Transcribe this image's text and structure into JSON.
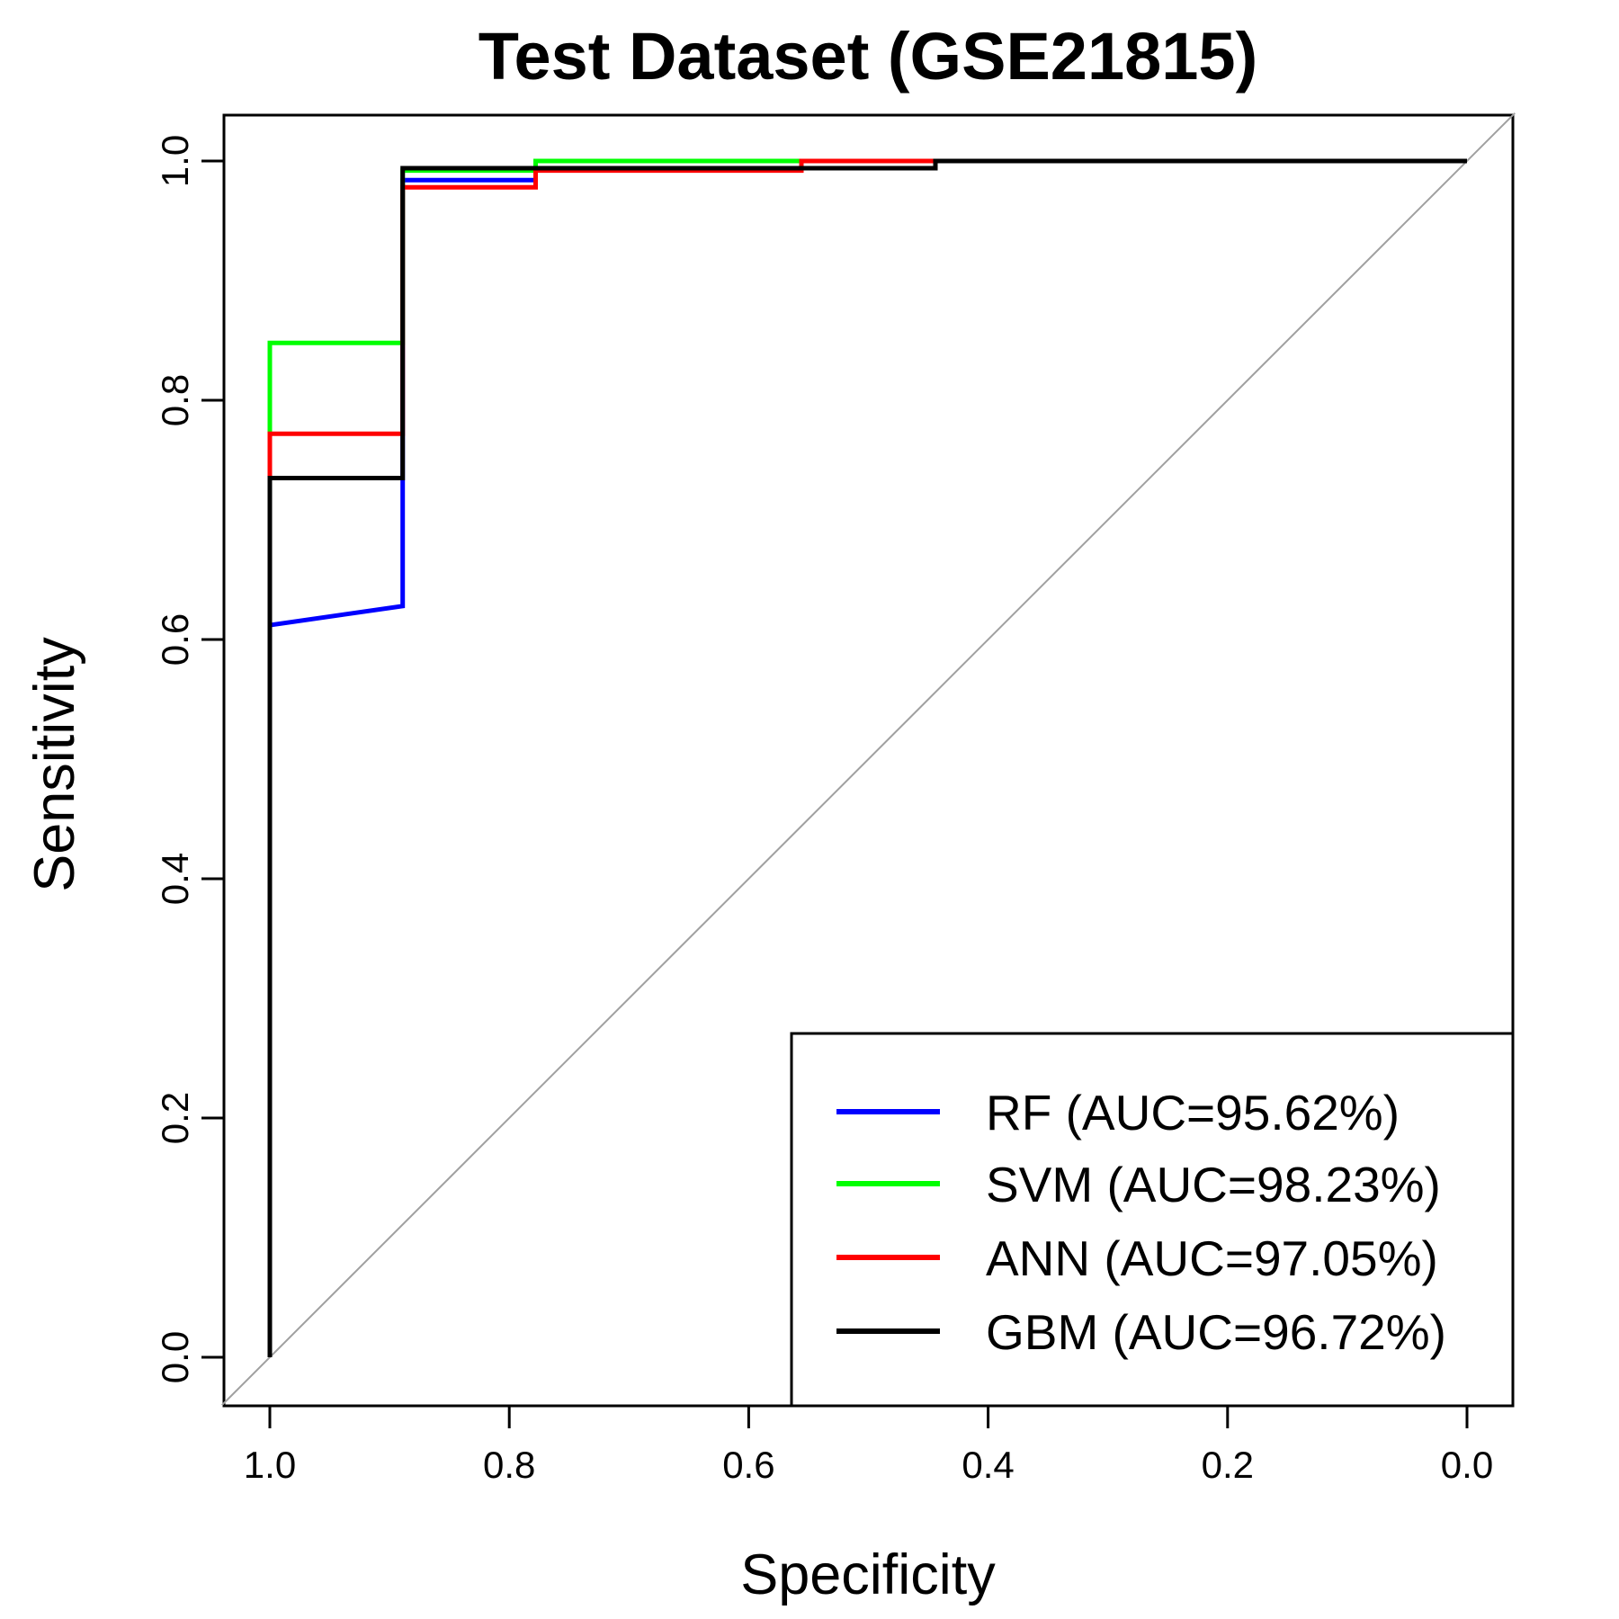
{
  "chart_data": {
    "type": "line",
    "title": "Test Dataset (GSE21815)",
    "xlabel": "Specificity",
    "ylabel": "Sensitivity",
    "xlim": [
      1.0,
      0.0
    ],
    "ylim": [
      0.0,
      1.0
    ],
    "x_reversed": true,
    "xticks": [
      "1.0",
      "0.8",
      "0.6",
      "0.4",
      "0.2",
      "0.0"
    ],
    "yticks": [
      "0.0",
      "0.2",
      "0.4",
      "0.6",
      "0.8",
      "1.0"
    ],
    "grid": false,
    "legend_position": "bottom-right",
    "reference_line": {
      "from": [
        1.0,
        0.0
      ],
      "to": [
        0.0,
        1.0
      ],
      "color": "#a0a0a0"
    },
    "series": [
      {
        "name": "RF (AUC=95.62%)",
        "color": "#0000ff",
        "points": [
          [
            1.0,
            0.0
          ],
          [
            1.0,
            0.612
          ],
          [
            0.889,
            0.628
          ],
          [
            0.889,
            0.984
          ],
          [
            0.778,
            0.984
          ],
          [
            0.778,
            1.0
          ],
          [
            0.0,
            1.0
          ]
        ]
      },
      {
        "name": "SVM (AUC=98.23%)",
        "color": "#00ff00",
        "points": [
          [
            1.0,
            0.0
          ],
          [
            1.0,
            0.848
          ],
          [
            0.889,
            0.848
          ],
          [
            0.889,
            0.992
          ],
          [
            0.778,
            0.992
          ],
          [
            0.778,
            1.0
          ],
          [
            0.0,
            1.0
          ]
        ]
      },
      {
        "name": "ANN (AUC=97.05%)",
        "color": "#ff0000",
        "points": [
          [
            1.0,
            0.0
          ],
          [
            1.0,
            0.772
          ],
          [
            0.889,
            0.772
          ],
          [
            0.889,
            0.978
          ],
          [
            0.778,
            0.978
          ],
          [
            0.778,
            0.992
          ],
          [
            0.556,
            0.992
          ],
          [
            0.556,
            1.0
          ],
          [
            0.0,
            1.0
          ]
        ]
      },
      {
        "name": "GBM (AUC=96.72%)",
        "color": "#000000",
        "points": [
          [
            1.0,
            0.0
          ],
          [
            1.0,
            0.735
          ],
          [
            0.889,
            0.735
          ],
          [
            0.889,
            0.994
          ],
          [
            0.444,
            0.994
          ],
          [
            0.444,
            1.0
          ],
          [
            0.0,
            1.0
          ]
        ]
      }
    ]
  }
}
